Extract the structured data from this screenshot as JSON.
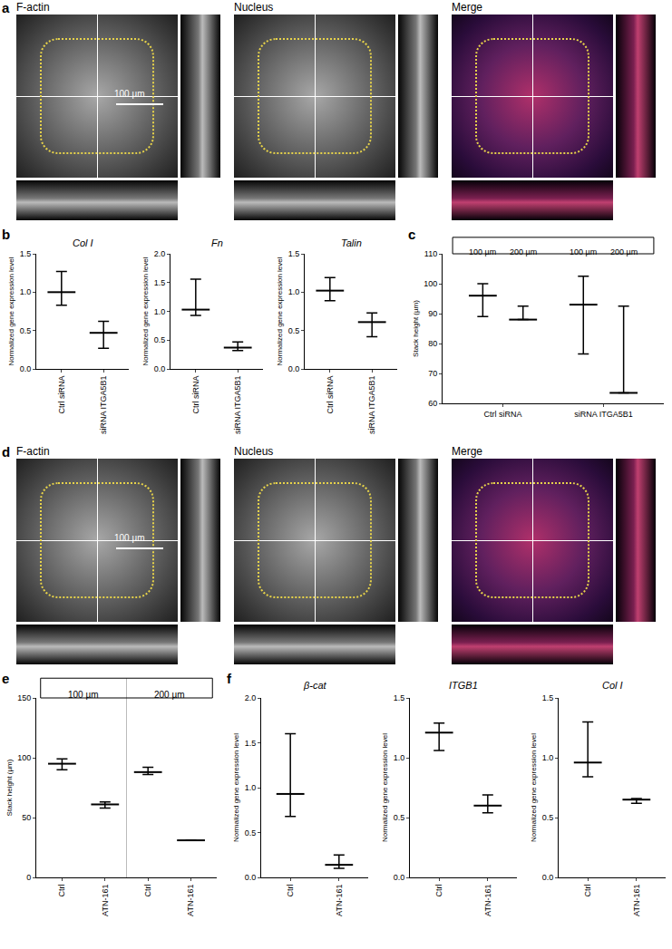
{
  "images": [
    {
      "panel": "a",
      "channels": [
        "F-actin",
        "Nucleus",
        "Merge"
      ],
      "scale_bar": "100 µm"
    },
    {
      "panel": "d",
      "channels": [
        "F-actin",
        "Nucleus",
        "Merge"
      ],
      "scale_bar": "100 µm"
    }
  ],
  "chart_data": [
    {
      "type": "scatter",
      "panel": "b",
      "title": "Col I",
      "marker": "line",
      "color": "#000000",
      "categories": [
        "Ctrl siRNA",
        "siRNA ITGA5B1"
      ],
      "values": [
        1.0,
        0.47
      ],
      "ranges": [
        [
          0.83,
          1.27
        ],
        [
          0.27,
          0.62
        ]
      ],
      "y_label": "Normalized gene expression level",
      "ylim": [
        0,
        1.5
      ],
      "yticks": [
        {
          "value": 0,
          "label": "0.0"
        },
        {
          "value": 0.5,
          "label": "0.5"
        },
        {
          "value": 1,
          "label": "1.0"
        },
        {
          "value": 1.5,
          "label": "1.5"
        }
      ]
    },
    {
      "type": "scatter",
      "title": "Fn",
      "marker": "line",
      "color": "#000000",
      "categories": [
        "Ctrl siRNA",
        "siRNA ITGA5B1"
      ],
      "values": [
        1.03,
        0.37
      ],
      "ranges": [
        [
          0.93,
          1.56
        ],
        [
          0.32,
          0.47
        ]
      ],
      "y_label": "Normalized gene expression level",
      "ylim": [
        0,
        2
      ],
      "yticks": [
        {
          "value": 0,
          "label": "0.0"
        },
        {
          "value": 0.5,
          "label": "0.5"
        },
        {
          "value": 1,
          "label": "1.0"
        },
        {
          "value": 1.5,
          "label": "1.5"
        },
        {
          "value": 2,
          "label": "2.0"
        }
      ]
    },
    {
      "type": "scatter",
      "title": "Talin",
      "marker": "line",
      "color": "#000000",
      "categories": [
        "Ctrl siRNA",
        "siRNA ITGA5B1"
      ],
      "values": [
        1.02,
        0.61
      ],
      "ranges": [
        [
          0.89,
          1.19
        ],
        [
          0.42,
          0.73
        ]
      ],
      "y_label": "Normalized gene expression level",
      "ylim": [
        0,
        1.5
      ],
      "yticks": [
        {
          "value": 0,
          "label": "0.0"
        },
        {
          "value": 0.5,
          "label": "0.5"
        },
        {
          "value": 1,
          "label": "1.0"
        },
        {
          "value": 1.5,
          "label": "1.5"
        }
      ]
    },
    {
      "type": "scatter",
      "panel": "c",
      "marker": "line",
      "color": "#000000",
      "categories": [
        "Ctrl siRNA",
        "siRNA ITGA5B1"
      ],
      "series": [
        {
          "name": "100 µm",
          "values": [
            96,
            93
          ],
          "ranges": [
            [
              89,
              100
            ],
            [
              76.5,
              102.5
            ]
          ]
        },
        {
          "name": "200 µm",
          "values": [
            88,
            63.5
          ],
          "ranges": [
            [
              88,
              92.5
            ],
            [
              63.5,
              92.5
            ]
          ]
        }
      ],
      "y_label": "Stack height (µm)",
      "ylim": [
        60,
        110
      ],
      "yticks": [
        60,
        70,
        80,
        90,
        100,
        110
      ]
    },
    {
      "type": "scatter",
      "panel": "e",
      "marker": "line",
      "color": "#000000",
      "groups": [
        {
          "name": "100 µm",
          "categories": [
            "Ctrl",
            "ATN-161"
          ],
          "values": [
            95,
            61
          ],
          "ranges": [
            [
              90,
              99
            ],
            [
              58,
              63
            ]
          ]
        },
        {
          "name": "200 µm",
          "categories": [
            "Ctrl",
            "ATN-161"
          ],
          "values": [
            88,
            31
          ],
          "ranges": [
            [
              86,
              92
            ],
            [
              31,
              31
            ]
          ]
        }
      ],
      "y_label": "Stack height (µm)",
      "ylim": [
        0,
        150
      ],
      "yticks": [
        0,
        50,
        100,
        150
      ]
    },
    {
      "type": "scatter",
      "panel": "f",
      "title": "β-cat",
      "marker": "line",
      "color": "#000000",
      "categories": [
        "Ctrl",
        "ATN-161"
      ],
      "values": [
        0.93,
        0.14
      ],
      "ranges": [
        [
          0.68,
          1.6
        ],
        [
          0.1,
          0.25
        ]
      ],
      "y_label": "Normalized gene expression level",
      "ylim": [
        0,
        2
      ],
      "yticks": [
        {
          "value": 0,
          "label": "0.0"
        },
        {
          "value": 0.5,
          "label": "0.5"
        },
        {
          "value": 1,
          "label": "1.0"
        },
        {
          "value": 1.5,
          "label": "1.5"
        },
        {
          "value": 2,
          "label": "2.0"
        }
      ]
    },
    {
      "type": "scatter",
      "title": "ITGB1",
      "marker": "line",
      "color": "#000000",
      "categories": [
        "Ctrl",
        "ATN-161"
      ],
      "values": [
        1.21,
        0.6
      ],
      "ranges": [
        [
          1.06,
          1.29
        ],
        [
          0.54,
          0.69
        ]
      ],
      "y_label": "Normalized gene expression level",
      "ylim": [
        0,
        1.5
      ],
      "yticks": [
        {
          "value": 0,
          "label": "0.0"
        },
        {
          "value": 0.5,
          "label": "0.5"
        },
        {
          "value": 1,
          "label": "1.0"
        },
        {
          "value": 1.5,
          "label": "1.5"
        }
      ]
    },
    {
      "type": "scatter",
      "title": "Col I",
      "marker": "line",
      "color": "#000000",
      "categories": [
        "Ctrl",
        "ATN-161"
      ],
      "values": [
        0.96,
        0.65
      ],
      "ranges": [
        [
          0.84,
          1.3
        ],
        [
          0.62,
          0.66
        ]
      ],
      "y_label": "Normalized gene expression level",
      "ylim": [
        0,
        1.5
      ],
      "yticks": [
        {
          "value": 0,
          "label": "0.0"
        },
        {
          "value": 0.5,
          "label": "0.5"
        },
        {
          "value": 1,
          "label": "1.0"
        },
        {
          "value": 1.5,
          "label": "1.5"
        }
      ]
    }
  ]
}
